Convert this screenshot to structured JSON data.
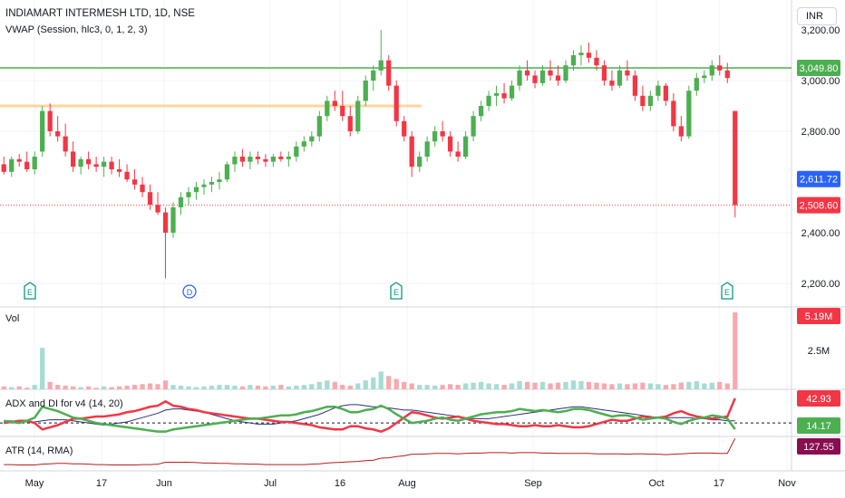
{
  "header": {
    "title": "INDIAMART INTERMESH LTD, 1D, NSE",
    "indicator": "VWAP (Session, hlc3, 0, 1, 2, 3)",
    "currency": "INR"
  },
  "panes": {
    "volume_label": "Vol",
    "adx_label": "ADX and DI for v4 (14, 20)",
    "atr_label": "ATR (14, RMA)"
  },
  "price_scale": {
    "ticks": [
      "3,000.00",
      "2,800.00",
      "2,400.00",
      "2,200.00"
    ],
    "top_partial_tick": "3,200.00",
    "badges": [
      {
        "label": "3,049.80",
        "color": "#4caf50"
      },
      {
        "label": "2,611.72",
        "color": "#2962ff"
      },
      {
        "label": "2,508.60",
        "color": "#f23645"
      }
    ]
  },
  "volume_scale": {
    "tick": "2.5M",
    "badge": {
      "label": "5.19M",
      "color": "#f23645"
    }
  },
  "adx_scale": {
    "badges": [
      {
        "label": "42.93",
        "color": "#f23645"
      },
      {
        "label": "14.17",
        "color": "#4caf50"
      }
    ]
  },
  "atr_scale": {
    "badge": {
      "label": "127.55",
      "color": "#880e4f"
    }
  },
  "time_axis": [
    "May",
    "17",
    "Jun",
    "Jul",
    "16",
    "Aug",
    "Sep",
    "Oct",
    "17",
    "Nov"
  ],
  "events": [
    "E",
    "D",
    "E",
    "E"
  ],
  "colors": {
    "up": "#26a69a",
    "up_candle": "#4caf50",
    "down": "#f23645",
    "level": "#4caf50",
    "vwap_band": "#ffcc80",
    "adx": "#2b2d7a",
    "atr": "#b71c1c"
  },
  "chart_data": {
    "type": "candlestick",
    "title": "INDIAMART INTERMESH LTD, 1D, NSE",
    "ylim": [
      2200,
      3250
    ],
    "horizontal_levels": [
      3049.8,
      2900
    ],
    "last_price": 2508.6,
    "vwap": 2611.72,
    "candles": [
      [
        2670,
        2700,
        2630,
        2640
      ],
      [
        2640,
        2700,
        2620,
        2690
      ],
      [
        2690,
        2710,
        2660,
        2680
      ],
      [
        2680,
        2720,
        2640,
        2650
      ],
      [
        2650,
        2720,
        2630,
        2700
      ],
      [
        2720,
        2900,
        2700,
        2880
      ],
      [
        2880,
        2910,
        2780,
        2800
      ],
      [
        2800,
        2860,
        2760,
        2780
      ],
      [
        2780,
        2830,
        2700,
        2720
      ],
      [
        2720,
        2760,
        2640,
        2660
      ],
      [
        2660,
        2700,
        2630,
        2690
      ],
      [
        2690,
        2720,
        2650,
        2670
      ],
      [
        2670,
        2700,
        2640,
        2660
      ],
      [
        2660,
        2700,
        2620,
        2680
      ],
      [
        2680,
        2700,
        2630,
        2650
      ],
      [
        2650,
        2690,
        2620,
        2640
      ],
      [
        2640,
        2670,
        2600,
        2610
      ],
      [
        2610,
        2650,
        2570,
        2590
      ],
      [
        2590,
        2620,
        2540,
        2560
      ],
      [
        2560,
        2590,
        2490,
        2510
      ],
      [
        2510,
        2560,
        2470,
        2480
      ],
      [
        2480,
        2500,
        2220,
        2400
      ],
      [
        2400,
        2520,
        2380,
        2500
      ],
      [
        2500,
        2560,
        2470,
        2540
      ],
      [
        2540,
        2580,
        2510,
        2560
      ],
      [
        2560,
        2600,
        2530,
        2580
      ],
      [
        2580,
        2610,
        2550,
        2590
      ],
      [
        2590,
        2620,
        2560,
        2600
      ],
      [
        2600,
        2640,
        2570,
        2610
      ],
      [
        2610,
        2680,
        2600,
        2670
      ],
      [
        2670,
        2720,
        2640,
        2700
      ],
      [
        2700,
        2730,
        2660,
        2680
      ],
      [
        2680,
        2720,
        2650,
        2700
      ],
      [
        2700,
        2720,
        2670,
        2690
      ],
      [
        2690,
        2710,
        2660,
        2680
      ],
      [
        2680,
        2710,
        2660,
        2700
      ],
      [
        2700,
        2720,
        2680,
        2690
      ],
      [
        2690,
        2720,
        2660,
        2700
      ],
      [
        2700,
        2760,
        2680,
        2740
      ],
      [
        2740,
        2780,
        2720,
        2760
      ],
      [
        2760,
        2800,
        2740,
        2780
      ],
      [
        2780,
        2880,
        2760,
        2860
      ],
      [
        2860,
        2940,
        2840,
        2920
      ],
      [
        2920,
        2960,
        2880,
        2900
      ],
      [
        2900,
        2960,
        2840,
        2860
      ],
      [
        2860,
        2900,
        2780,
        2800
      ],
      [
        2800,
        2940,
        2790,
        2920
      ],
      [
        2920,
        3020,
        2900,
        3000
      ],
      [
        3000,
        3060,
        2960,
        3040
      ],
      [
        3040,
        3200,
        3020,
        3080
      ],
      [
        3080,
        3100,
        2960,
        2980
      ],
      [
        2980,
        3000,
        2820,
        2840
      ],
      [
        2840,
        2860,
        2760,
        2780
      ],
      [
        2780,
        2800,
        2620,
        2660
      ],
      [
        2660,
        2720,
        2640,
        2700
      ],
      [
        2700,
        2780,
        2680,
        2760
      ],
      [
        2760,
        2820,
        2740,
        2800
      ],
      [
        2800,
        2840,
        2760,
        2780
      ],
      [
        2780,
        2800,
        2700,
        2720
      ],
      [
        2720,
        2760,
        2680,
        2700
      ],
      [
        2700,
        2800,
        2690,
        2780
      ],
      [
        2780,
        2880,
        2760,
        2860
      ],
      [
        2860,
        2920,
        2840,
        2900
      ],
      [
        2900,
        2960,
        2880,
        2940
      ],
      [
        2940,
        2980,
        2900,
        2950
      ],
      [
        2950,
        2990,
        2910,
        2930
      ],
      [
        2930,
        3000,
        2920,
        2980
      ],
      [
        2980,
        3060,
        2960,
        3040
      ],
      [
        3040,
        3080,
        3000,
        3020
      ],
      [
        3020,
        3040,
        2970,
        2990
      ],
      [
        2990,
        3060,
        2980,
        3040
      ],
      [
        3040,
        3080,
        3000,
        3020
      ],
      [
        3020,
        3060,
        2980,
        3000
      ],
      [
        3000,
        3080,
        2990,
        3060
      ],
      [
        3060,
        3120,
        3040,
        3100
      ],
      [
        3100,
        3140,
        3060,
        3110
      ],
      [
        3110,
        3150,
        3070,
        3090
      ],
      [
        3090,
        3120,
        3040,
        3060
      ],
      [
        3060,
        3080,
        2980,
        3000
      ],
      [
        3000,
        3040,
        2960,
        2980
      ],
      [
        2980,
        3060,
        2970,
        3040
      ],
      [
        3040,
        3080,
        3000,
        3020
      ],
      [
        3020,
        3040,
        2920,
        2940
      ],
      [
        2940,
        2980,
        2880,
        2900
      ],
      [
        2900,
        2960,
        2880,
        2940
      ],
      [
        2940,
        3000,
        2920,
        2980
      ],
      [
        2980,
        2990,
        2900,
        2920
      ],
      [
        2920,
        2950,
        2800,
        2820
      ],
      [
        2820,
        2860,
        2760,
        2780
      ],
      [
        2780,
        2980,
        2770,
        2960
      ],
      [
        2960,
        3030,
        2940,
        3010
      ],
      [
        3010,
        3040,
        2990,
        3020
      ],
      [
        3020,
        3080,
        3000,
        3060
      ],
      [
        3060,
        3100,
        3020,
        3040
      ],
      [
        3040,
        3070,
        2990,
        3010
      ],
      [
        2880,
        2880,
        2460,
        2508.6
      ]
    ],
    "volume": [
      0.2,
      0.15,
      0.2,
      0.1,
      0.3,
      2.8,
      0.5,
      0.3,
      0.25,
      0.2,
      0.15,
      0.2,
      0.1,
      0.2,
      0.15,
      0.2,
      0.25,
      0.3,
      0.35,
      0.4,
      0.35,
      0.6,
      0.3,
      0.25,
      0.2,
      0.15,
      0.2,
      0.25,
      0.3,
      0.3,
      0.25,
      0.2,
      0.3,
      0.25,
      0.2,
      0.25,
      0.3,
      0.2,
      0.25,
      0.3,
      0.35,
      0.5,
      0.6,
      0.5,
      0.3,
      0.25,
      0.4,
      0.6,
      0.8,
      1.2,
      0.9,
      0.7,
      0.5,
      0.4,
      0.3,
      0.3,
      0.25,
      0.3,
      0.35,
      0.3,
      0.4,
      0.45,
      0.5,
      0.4,
      0.35,
      0.3,
      0.4,
      0.55,
      0.5,
      0.45,
      0.5,
      0.4,
      0.45,
      0.5,
      0.6,
      0.55,
      0.5,
      0.45,
      0.4,
      0.35,
      0.4,
      0.35,
      0.4,
      0.45,
      0.4,
      0.35,
      0.3,
      0.35,
      0.45,
      0.5,
      0.55,
      0.4,
      0.45,
      0.5,
      0.4,
      5.19
    ],
    "adx_di": {
      "plus_di": [
        22,
        21,
        20,
        22,
        25,
        35,
        33,
        31,
        28,
        25,
        24,
        22,
        20,
        19,
        18,
        17,
        16,
        15,
        14,
        13,
        12,
        12,
        14,
        15,
        16,
        17,
        18,
        19,
        20,
        21,
        22,
        23,
        24,
        24,
        25,
        26,
        27,
        27,
        28,
        30,
        31,
        33,
        35,
        35,
        33,
        30,
        30,
        32,
        33,
        36,
        33,
        28,
        24,
        20,
        21,
        22,
        24,
        25,
        23,
        22,
        24,
        26,
        28,
        29,
        30,
        30,
        31,
        33,
        32,
        31,
        32,
        31,
        30,
        31,
        33,
        33,
        32,
        30,
        28,
        26,
        27,
        27,
        25,
        23,
        24,
        25,
        24,
        21,
        19,
        22,
        24,
        25,
        27,
        26,
        24,
        14.17
      ],
      "minus_di": [
        20,
        21,
        22,
        22,
        20,
        14,
        16,
        18,
        21,
        24,
        24,
        25,
        26,
        26,
        27,
        28,
        30,
        31,
        33,
        35,
        36,
        40,
        36,
        35,
        33,
        32,
        30,
        29,
        28,
        27,
        26,
        25,
        24,
        24,
        23,
        22,
        21,
        21,
        20,
        19,
        18,
        16,
        15,
        14,
        14,
        17,
        17,
        15,
        14,
        12,
        15,
        20,
        25,
        30,
        29,
        27,
        25,
        24,
        25,
        26,
        24,
        22,
        21,
        20,
        19,
        19,
        18,
        17,
        17,
        18,
        17,
        17,
        18,
        17,
        16,
        16,
        17,
        19,
        21,
        23,
        22,
        22,
        24,
        26,
        25,
        25,
        26,
        29,
        31,
        28,
        26,
        25,
        24,
        25,
        26,
        42.93
      ],
      "adx": [
        22,
        22,
        21,
        21,
        21,
        22,
        23,
        23,
        23,
        22,
        21,
        20,
        19,
        18,
        19,
        20,
        21,
        23,
        25,
        27,
        29,
        32,
        33,
        33,
        32,
        31,
        30,
        28,
        26,
        24,
        22,
        21,
        20,
        19,
        19,
        19,
        20,
        21,
        22,
        24,
        26,
        28,
        31,
        34,
        36,
        37,
        37,
        36,
        35,
        35,
        34,
        33,
        32,
        32,
        31,
        30,
        29,
        28,
        27,
        26,
        25,
        24,
        24,
        24,
        25,
        26,
        27,
        28,
        29,
        30,
        31,
        32,
        33,
        34,
        35,
        35,
        34,
        33,
        32,
        31,
        30,
        29,
        28,
        27,
        26,
        25,
        25,
        25,
        25,
        25,
        24,
        24,
        23,
        23,
        22,
        22
      ],
      "threshold": 20
    },
    "atr": [
      62,
      62,
      61,
      61,
      61,
      63,
      64,
      65,
      65,
      64,
      64,
      63,
      62,
      62,
      61,
      61,
      61,
      61,
      62,
      62,
      63,
      68,
      68,
      68,
      68,
      67,
      66,
      66,
      65,
      65,
      64,
      64,
      63,
      63,
      62,
      62,
      62,
      62,
      62,
      62,
      63,
      64,
      66,
      67,
      68,
      69,
      70,
      72,
      73,
      78,
      79,
      82,
      84,
      88,
      88,
      89,
      90,
      90,
      90,
      89,
      90,
      91,
      91,
      92,
      92,
      92,
      91,
      92,
      92,
      92,
      91,
      91,
      90,
      90,
      90,
      90,
      90,
      89,
      89,
      89,
      89,
      88,
      89,
      89,
      88,
      88,
      87,
      88,
      89,
      90,
      91,
      91,
      91,
      90,
      90,
      127.55
    ]
  }
}
